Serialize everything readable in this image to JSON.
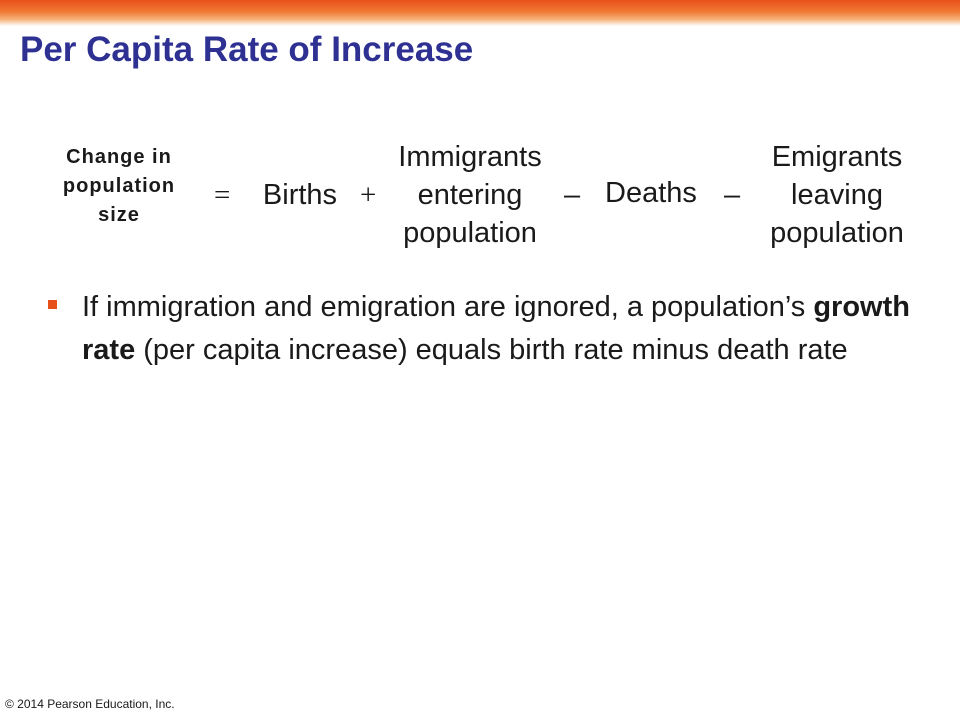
{
  "slide": {
    "title": "Per Capita Rate of Increase",
    "accent_color": "#e8501a",
    "title_color": "#2e3192"
  },
  "equation": {
    "lhs": [
      "Change in",
      "population",
      "size"
    ],
    "op_equals": "=",
    "births": "Births",
    "op_plus": "+",
    "immigrants": [
      "Immigrants",
      "entering",
      "population"
    ],
    "op_minus_1": "–",
    "deaths": "Deaths",
    "op_minus_2": "–",
    "emigrants": [
      "Emigrants",
      "leaving",
      "population"
    ]
  },
  "bullet": {
    "icon": "square-bullet-icon",
    "text_before": "If immigration and emigration are ignored, a population’s ",
    "bold": "growth rate",
    "text_after": " (per capita increase) equals birth rate minus death rate"
  },
  "footer": {
    "copyright": "© 2014 Pearson Education, Inc."
  }
}
